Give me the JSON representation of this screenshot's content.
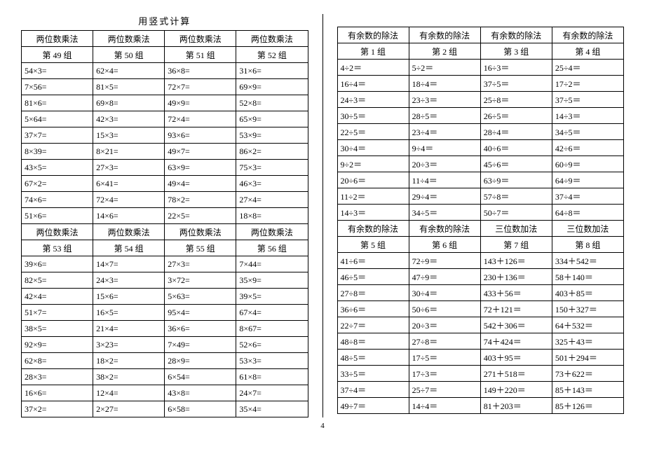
{
  "title": "用竖式计算",
  "page_number": "4",
  "left": {
    "block1": {
      "headers": [
        "两位数乘法",
        "两位数乘法",
        "两位数乘法",
        "两位数乘法"
      ],
      "groups": [
        "第 49 组",
        "第 50 组",
        "第 51 组",
        "第 52 组"
      ],
      "rows": [
        [
          "54×3=",
          "62×4=",
          "36×8=",
          "31×6="
        ],
        [
          "7×56=",
          "81×5=",
          "72×7=",
          "69×9="
        ],
        [
          "81×6=",
          "69×8=",
          "49×9=",
          "52×8="
        ],
        [
          "5×64=",
          "42×3=",
          "72×4=",
          "65×9="
        ],
        [
          "37×7=",
          "15×3=",
          "93×6=",
          "53×9="
        ],
        [
          "8×39=",
          "8×21=",
          "49×7=",
          "86×2="
        ],
        [
          "43×5=",
          "27×3=",
          "63×9=",
          "75×3="
        ],
        [
          "67×2=",
          "6×41=",
          "49×4=",
          "46×3="
        ],
        [
          "74×6=",
          "72×4=",
          "78×2=",
          "27×4="
        ],
        [
          "51×6=",
          "14×6=",
          "22×5=",
          "18×8="
        ]
      ]
    },
    "block2": {
      "headers": [
        "两位数乘法",
        "两位数乘法",
        "两位数乘法",
        "两位数乘法"
      ],
      "groups": [
        "第 53 组",
        "第 54 组",
        "第 55 组",
        "第 56 组"
      ],
      "rows": [
        [
          "39×6=",
          "14×7=",
          "27×3=",
          "7×44="
        ],
        [
          "82×5=",
          "24×3=",
          "3×72=",
          "35×9="
        ],
        [
          "42×4=",
          "15×6=",
          "5×63=",
          "39×5="
        ],
        [
          "51×7=",
          "16×5=",
          "95×4=",
          "67×4="
        ],
        [
          "38×5=",
          "21×4=",
          "36×6=",
          "8×67="
        ],
        [
          "92×9=",
          "3×23=",
          "7×49=",
          "52×6="
        ],
        [
          "62×8=",
          "18×2=",
          "28×9=",
          "53×3="
        ],
        [
          "28×3=",
          "38×2=",
          "6×54=",
          "61×8="
        ],
        [
          "16×6=",
          "12×4=",
          "43×8=",
          "24×7="
        ],
        [
          "37×2=",
          "2×27=",
          "6×58=",
          "35×4="
        ]
      ]
    }
  },
  "right": {
    "block1": {
      "headers": [
        "有余数的除法",
        "有余数的除法",
        "有余数的除法",
        "有余数的除法"
      ],
      "groups": [
        "第 1 组",
        "第 2 组",
        "第 3 组",
        "第 4 组"
      ],
      "rows": [
        [
          "4÷2＝",
          "5÷2＝",
          "16÷3＝",
          "25÷4＝"
        ],
        [
          "16÷4＝",
          "18÷4＝",
          "37÷5＝",
          "17÷2＝"
        ],
        [
          "24÷3＝",
          "23÷3＝",
          "25÷8＝",
          "37÷5＝"
        ],
        [
          "30÷5＝",
          "28÷5＝",
          "26÷5＝",
          "14÷3＝"
        ],
        [
          "22÷5＝",
          "23÷4＝",
          "28÷4＝",
          "34÷5＝"
        ],
        [
          "30÷4＝",
          "9÷4＝",
          "40÷6＝",
          "42÷6＝"
        ],
        [
          "9÷2＝",
          "20÷3＝",
          "45÷6＝",
          "60÷9＝"
        ],
        [
          "20÷6＝",
          "11÷4＝",
          "63÷9＝",
          "64÷9＝"
        ],
        [
          "11÷2＝",
          "29÷4＝",
          "57÷8＝",
          "37÷4＝"
        ],
        [
          "14÷3＝",
          "34÷5＝",
          "50÷7＝",
          "64÷8＝"
        ]
      ]
    },
    "block2": {
      "headers": [
        "有余数的除法",
        "有余数的除法",
        "三位数加法",
        "三位数加法"
      ],
      "groups": [
        "第 5 组",
        "第 6 组",
        "第 7 组",
        "第 8 组"
      ],
      "rows": [
        [
          "41÷6＝",
          "72÷9＝",
          "143＋126＝",
          "334＋542＝"
        ],
        [
          "46÷5＝",
          "47÷9＝",
          "230＋136＝",
          "58＋140＝"
        ],
        [
          "27÷8＝",
          "30÷4＝",
          "433＋56＝",
          "403＋85＝"
        ],
        [
          "36÷6＝",
          "50÷6＝",
          "72＋121＝",
          "150＋327＝"
        ],
        [
          "22÷7＝",
          "20÷3＝",
          "542＋306＝",
          "64＋532＝"
        ],
        [
          "48÷8＝",
          "27÷8＝",
          "74＋424＝",
          "325＋43＝"
        ],
        [
          "48÷5＝",
          "17÷5＝",
          "403＋95＝",
          "501＋294＝"
        ],
        [
          "33÷5＝",
          "17÷3＝",
          "271＋518＝",
          "73＋622＝"
        ],
        [
          "37÷4＝",
          "25÷7＝",
          "149＋220＝",
          "85＋143＝"
        ],
        [
          "49÷7＝",
          "14÷4＝",
          "81＋203＝",
          "85＋126＝"
        ]
      ]
    }
  }
}
